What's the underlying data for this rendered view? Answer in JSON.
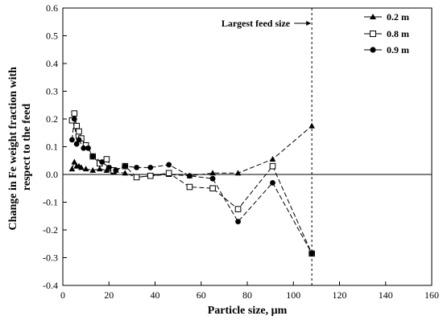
{
  "chart_data": {
    "type": "line",
    "title": "",
    "xlabel": "Particle size, μm",
    "ylabel_lines": [
      "Change in Fe weight fraction with",
      "respect to the feed"
    ],
    "xlim": [
      0,
      160
    ],
    "ylim": [
      -0.4,
      0.6
    ],
    "xticks": [
      0,
      20,
      40,
      60,
      80,
      100,
      120,
      140,
      160
    ],
    "yticks": [
      -0.4,
      -0.3,
      -0.2,
      -0.1,
      0.0,
      0.1,
      0.2,
      0.3,
      0.4,
      0.5,
      0.6
    ],
    "ytick_labels": [
      "-0.4",
      "-0.3",
      "-0.2",
      "-0.1",
      "0.0",
      "0.1",
      "0.2",
      "0.3",
      "0.4",
      "0.5",
      "0.6"
    ],
    "grid": false,
    "legend_position": "top-right",
    "reference_lines": {
      "horizontal_y": 0.0,
      "vertical_x": 108
    },
    "annotation": {
      "text": "Largest feed size",
      "x": 108,
      "y": 0.545
    },
    "series": [
      {
        "name": "0.2 m",
        "marker": "filled-triangle",
        "x": [
          4,
          5,
          6,
          7,
          8,
          10,
          13,
          16,
          19,
          22,
          27,
          32,
          38,
          46,
          55,
          65,
          76,
          91,
          108
        ],
        "y": [
          0.02,
          0.045,
          0.03,
          0.03,
          0.025,
          0.02,
          0.015,
          0.02,
          0.015,
          0.01,
          0.005,
          -0.01,
          -0.005,
          0.0,
          -0.005,
          0.005,
          0.005,
          0.055,
          0.175
        ]
      },
      {
        "name": "0.8 m",
        "marker": "open-square",
        "x": [
          4,
          5,
          6,
          7,
          8,
          10,
          13,
          16,
          19,
          22,
          27,
          32,
          38,
          46,
          55,
          65,
          76,
          91,
          108
        ],
        "y": [
          0.195,
          0.22,
          0.175,
          0.155,
          0.13,
          0.105,
          0.065,
          0.04,
          0.055,
          0.015,
          0.03,
          -0.01,
          -0.005,
          0.005,
          -0.045,
          -0.05,
          -0.125,
          0.03,
          -0.285
        ]
      },
      {
        "name": "0.9 m",
        "marker": "filled-circle",
        "x": [
          4,
          5,
          6,
          7,
          9,
          11,
          13,
          17,
          20,
          23,
          27,
          32,
          38,
          46,
          55,
          65,
          76,
          91,
          108
        ],
        "y": [
          0.125,
          0.2,
          0.11,
          0.125,
          0.095,
          0.095,
          0.065,
          0.045,
          0.025,
          0.015,
          0.03,
          0.025,
          0.025,
          0.035,
          -0.005,
          -0.015,
          -0.17,
          -0.03,
          -0.285
        ]
      }
    ]
  }
}
